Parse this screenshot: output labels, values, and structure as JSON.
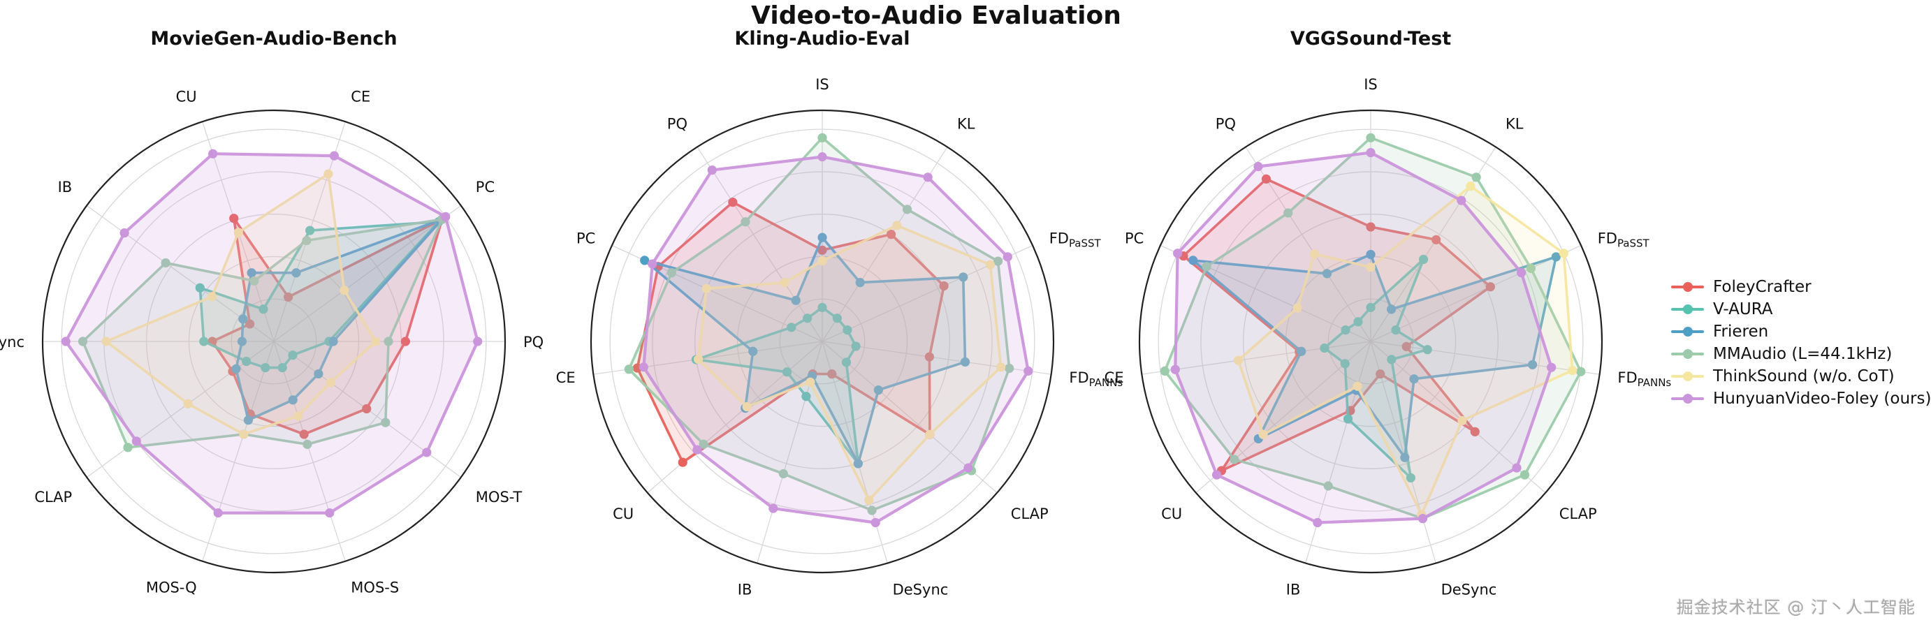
{
  "page": {
    "title": "Video-to-Audio Evaluation",
    "watermark": "掘金技术社区 @ 汀丶人工智能"
  },
  "colors": {
    "foleycrafter": "#E8615A",
    "v_aura": "#55C3B0",
    "frieren": "#4E9FC6",
    "mmaudio": "#9BCBAA",
    "thinksound": "#F5E6A0",
    "hunyuanvideo_foley": "#CB95DB",
    "grid": "#d8d8d8",
    "outline": "#222222",
    "label": "#111111"
  },
  "legend": {
    "items": [
      {
        "label": "FoleyCrafter",
        "color": "#E8615A"
      },
      {
        "label": "V-AURA",
        "color": "#55C3B0"
      },
      {
        "label": "Frieren",
        "color": "#4E9FC6"
      },
      {
        "label": "MMAudio (L=44.1kHz)",
        "color": "#9BCBAA"
      },
      {
        "label": "ThinkSound (w/o. CoT)",
        "color": "#F5E6A0"
      },
      {
        "label": "HunyuanVideo-Foley (ours)",
        "color": "#CB95DB"
      }
    ]
  },
  "chart_data": [
    {
      "type": "radar",
      "title": "MovieGen-Audio-Bench",
      "start_angle_deg": -18,
      "rmax": 1.0,
      "gridlines": [
        0.2,
        0.4,
        0.6,
        0.8,
        1.0
      ],
      "legend_position": "outside-right",
      "axes": [
        "CU",
        "CE",
        "PC",
        "PQ",
        "MOS-T",
        "MOS-S",
        "MOS-Q",
        "CLAP",
        "DeSync",
        "IB"
      ],
      "series": [
        {
          "name": "FoleyCrafter",
          "color": "#E8615A",
          "values": [
            0.61,
            0.22,
            0.98,
            0.62,
            0.54,
            0.46,
            0.36,
            0.24,
            0.29,
            0.14
          ]
        },
        {
          "name": "V-AURA",
          "color": "#55C3B0",
          "values": [
            0.16,
            0.55,
            0.96,
            0.26,
            0.11,
            0.13,
            0.13,
            0.16,
            0.33,
            0.43
          ]
        },
        {
          "name": "Frieren",
          "color": "#4E9FC6",
          "values": [
            0.34,
            0.34,
            0.98,
            0.28,
            0.26,
            0.29,
            0.39,
            0.22,
            0.15,
            0.18
          ]
        },
        {
          "name": "MMAudio (L=44.1kHz)",
          "color": "#9BCBAA",
          "values": [
            0.3,
            0.5,
            0.98,
            0.54,
            0.65,
            0.51,
            0.46,
            0.85,
            0.9,
            0.63
          ]
        },
        {
          "name": "ThinkSound (w/o. CoT)",
          "color": "#F5E6A0",
          "values": [
            0.54,
            0.83,
            0.41,
            0.48,
            0.33,
            0.37,
            0.46,
            0.5,
            0.79,
            0.36
          ]
        },
        {
          "name": "HunyuanVideo-Foley (ours)",
          "color": "#CB95DB",
          "values": [
            0.93,
            0.92,
            1.0,
            0.96,
            0.89,
            0.85,
            0.85,
            0.8,
            0.98,
            0.87
          ]
        }
      ]
    },
    {
      "type": "radar",
      "title": "Kling-Audio-Eval",
      "start_angle_deg": 0,
      "rmax": 1.0,
      "gridlines": [
        0.2,
        0.4,
        0.6,
        0.8,
        1.0
      ],
      "axes": [
        "IS",
        "KL",
        "FD_PaSST",
        "FD_PANNs",
        "CLAP",
        "DeSync",
        "IB",
        "CU",
        "CE",
        "PC",
        "PQ"
      ],
      "series": [
        {
          "name": "FoleyCrafter",
          "color": "#E8615A",
          "values": [
            0.43,
            0.6,
            0.63,
            0.51,
            0.67,
            0.16,
            0.16,
            0.87,
            0.88,
            0.85,
            0.78
          ]
        },
        {
          "name": "V-AURA",
          "color": "#55C3B0",
          "values": [
            0.16,
            0.13,
            0.13,
            0.16,
            0.15,
            0.6,
            0.27,
            0.22,
            0.6,
            0.16,
            0.13
          ]
        },
        {
          "name": "Frieren",
          "color": "#4E9FC6",
          "values": [
            0.49,
            0.33,
            0.73,
            0.68,
            0.35,
            0.6,
            0.17,
            0.48,
            0.33,
            0.92,
            0.23
          ]
        },
        {
          "name": "MMAudio (L=44.1kHz)",
          "color": "#9BCBAA",
          "values": [
            0.96,
            0.74,
            0.91,
            0.89,
            0.93,
            0.83,
            0.65,
            0.74,
            0.92,
            0.78,
            0.67
          ]
        },
        {
          "name": "ThinkSound (w/o. CoT)",
          "color": "#F5E6A0",
          "values": [
            0.38,
            0.65,
            0.87,
            0.85,
            0.67,
            0.78,
            0.2,
            0.47,
            0.59,
            0.6,
            0.33
          ]
        },
        {
          "name": "HunyuanVideo-Foley (ours)",
          "color": "#CB95DB",
          "values": [
            0.87,
            0.92,
            0.96,
            0.98,
            0.91,
            0.89,
            0.82,
            0.78,
            0.85,
            0.88,
            0.96
          ]
        }
      ]
    },
    {
      "type": "radar",
      "title": "VGGSound-Test",
      "start_angle_deg": 0,
      "rmax": 1.0,
      "gridlines": [
        0.2,
        0.4,
        0.6,
        0.8,
        1.0
      ],
      "axes": [
        "IS",
        "KL",
        "FD_PaSST",
        "FD_PANNs",
        "CLAP",
        "DeSync",
        "IB",
        "CU",
        "CE",
        "PC",
        "PQ"
      ],
      "series": [
        {
          "name": "FoleyCrafter",
          "color": "#E8615A",
          "values": [
            0.54,
            0.57,
            0.62,
            0.17,
            0.65,
            0.16,
            0.34,
            0.93,
            0.34,
            0.97,
            0.91
          ]
        },
        {
          "name": "V-AURA",
          "color": "#55C3B0",
          "values": [
            0.16,
            0.46,
            0.13,
            0.27,
            0.13,
            0.67,
            0.38,
            0.16,
            0.22,
            0.13,
            0.11
          ]
        },
        {
          "name": "Frieren",
          "color": "#4E9FC6",
          "values": [
            0.41,
            0.18,
            0.96,
            0.77,
            0.27,
            0.57,
            0.24,
            0.7,
            0.33,
            0.92,
            0.38
          ]
        },
        {
          "name": "MMAudio (L=44.1kHz)",
          "color": "#9BCBAA",
          "values": [
            0.96,
            0.92,
            0.83,
            1.0,
            0.96,
            0.87,
            0.71,
            0.85,
            0.98,
            0.85,
            0.72
          ]
        },
        {
          "name": "ThinkSound (w/o. CoT)",
          "color": "#F5E6A0",
          "values": [
            0.35,
            0.87,
            1.0,
            0.96,
            0.57,
            0.85,
            0.22,
            0.67,
            0.63,
            0.38,
            0.49
          ]
        },
        {
          "name": "HunyuanVideo-Foley (ours)",
          "color": "#CB95DB",
          "values": [
            0.89,
            0.79,
            0.78,
            0.86,
            0.91,
            0.87,
            0.89,
            0.96,
            0.93,
            1.0,
            0.98
          ]
        }
      ]
    }
  ]
}
